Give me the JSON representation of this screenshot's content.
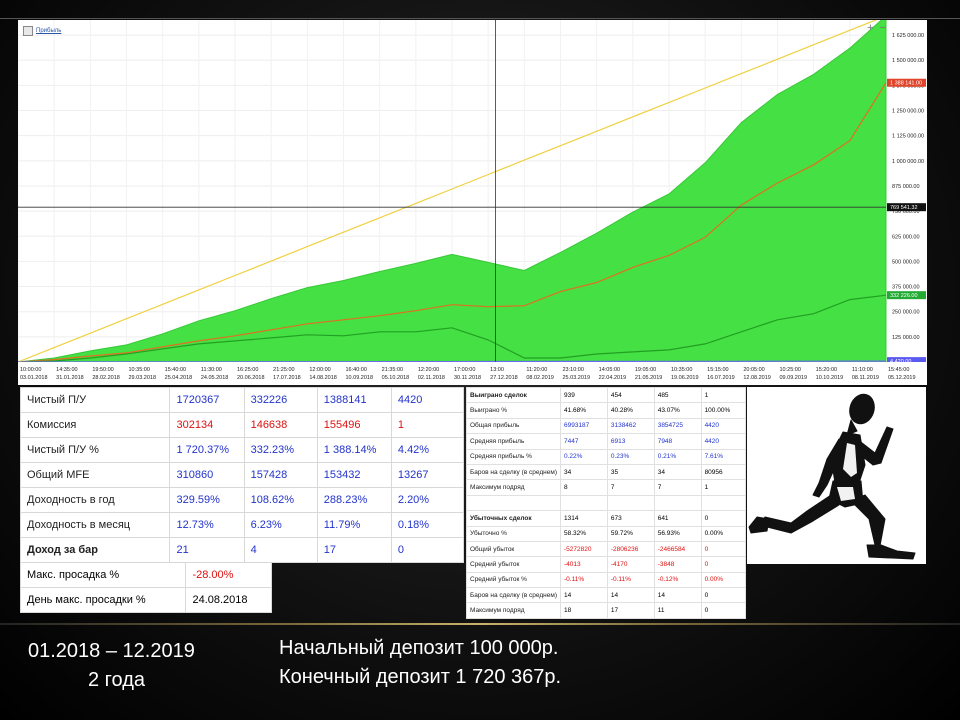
{
  "chart_legend": "Прибыль",
  "chart_data": {
    "type": "area",
    "x_ticks": [
      {
        "time": "10:00:00",
        "date": "03.01.2018"
      },
      {
        "time": "14:35:00",
        "date": "31.01.2018"
      },
      {
        "time": "19:50:00",
        "date": "28.02.2018"
      },
      {
        "time": "10:35:00",
        "date": "29.03.2018"
      },
      {
        "time": "15:40:00",
        "date": "25.04.2018"
      },
      {
        "time": "11:30:00",
        "date": "24.05.2018"
      },
      {
        "time": "16:25:00",
        "date": "20.06.2018"
      },
      {
        "time": "21:25:00",
        "date": "17.07.2018"
      },
      {
        "time": "12:00:00",
        "date": "14.08.2018"
      },
      {
        "time": "16:40:00",
        "date": "10.09.2018"
      },
      {
        "time": "21:35:00",
        "date": "05.10.2018"
      },
      {
        "time": "12:20:00",
        "date": "02.11.2018"
      },
      {
        "time": "17:00:00",
        "date": "30.11.2018"
      },
      {
        "time": "13:00",
        "date": "27.12.2018"
      },
      {
        "time": "11:20:00",
        "date": "08.02.2019"
      },
      {
        "time": "23:10:00",
        "date": "25.03.2019"
      },
      {
        "time": "14:05:00",
        "date": "22.04.2019"
      },
      {
        "time": "19:05:00",
        "date": "21.05.2019"
      },
      {
        "time": "10:35:00",
        "date": "19.06.2019"
      },
      {
        "time": "15:15:00",
        "date": "16.07.2019"
      },
      {
        "time": "20:05:00",
        "date": "12.08.2019"
      },
      {
        "time": "10:25:00",
        "date": "09.09.2019"
      },
      {
        "time": "15:20:00",
        "date": "10.10.2019"
      },
      {
        "time": "11:10:00",
        "date": "08.11.2019"
      },
      {
        "time": "15:45:00",
        "date": "05.12.2019"
      }
    ],
    "x_extra_labels": [
      "29.0",
      "2019"
    ],
    "y_ticks": [
      "1 625 000.00",
      "1 500 000.00",
      "1 375 000.00",
      "1 250 000.00",
      "1 125 000.00",
      "1 000 000.00",
      "875 000.00",
      "750 000.00",
      "625 000.00",
      "500 000.00",
      "375 000.00",
      "250 000.00",
      "125 000.00"
    ],
    "ylim": [
      0,
      1700000
    ],
    "price_tags": [
      {
        "label": "1 720 367.00",
        "value": 1720367,
        "color": "#f2c200"
      },
      {
        "label": "1 388 141.00",
        "value": 1388141,
        "color": "#e0442a"
      },
      {
        "label": "769 541.32",
        "value": 769541,
        "color": "#111111"
      },
      {
        "label": "332 226.00",
        "value": 332226,
        "color": "#22aa33"
      },
      {
        "label": "4 420.00",
        "value": 4420,
        "color": "#5a5af0"
      }
    ],
    "crosshair": {
      "x_fraction": 0.55,
      "value": 769541
    },
    "series": [
      {
        "name": "total",
        "color": "#44e044",
        "values": [
          0,
          20000,
          55000,
          85000,
          140000,
          205000,
          255000,
          315000,
          370000,
          405000,
          450000,
          490000,
          535000,
          495000,
          455000,
          545000,
          640000,
          745000,
          835000,
          990000,
          1190000,
          1330000,
          1430000,
          1560000,
          1720367
        ]
      },
      {
        "name": "long",
        "color": "#e07020",
        "values": [
          0,
          12000,
          30000,
          45000,
          75000,
          105000,
          130000,
          160000,
          190000,
          210000,
          230000,
          255000,
          285000,
          275000,
          280000,
          350000,
          395000,
          470000,
          530000,
          620000,
          780000,
          890000,
          980000,
          1100000,
          1388141
        ]
      },
      {
        "name": "short",
        "color": "#22a022",
        "values": [
          0,
          5000,
          20000,
          40000,
          65000,
          90000,
          105000,
          120000,
          135000,
          130000,
          150000,
          150000,
          170000,
          110000,
          20000,
          20000,
          40000,
          50000,
          60000,
          90000,
          150000,
          210000,
          240000,
          310000,
          332226
        ]
      },
      {
        "name": "straight",
        "color": "#f0d040",
        "values": [
          0,
          71682,
          143364,
          215046,
          286728,
          358410,
          430092,
          501774,
          573456,
          645138,
          716820,
          788502,
          860184,
          931866,
          1003548,
          1075230,
          1146912,
          1218594,
          1290276,
          1361958,
          1433640,
          1505322,
          1577004,
          1648686,
          1720367
        ]
      },
      {
        "name": "commission",
        "color": "#6a6af0",
        "values": [
          0,
          184,
          368,
          553,
          737,
          921,
          1105,
          1289,
          1473,
          1658,
          1842,
          2026,
          2210,
          2394,
          2578,
          2763,
          2947,
          3131,
          3315,
          3499,
          3683,
          3868,
          4052,
          4236,
          4420
        ]
      }
    ]
  },
  "stats": [
    {
      "label": "Чистый П/У",
      "values": [
        "1720367",
        "332226",
        "1388141",
        "4420"
      ],
      "red": false,
      "bold": false
    },
    {
      "label": "Комиссия",
      "values": [
        "302134",
        "146638",
        "155496",
        "1"
      ],
      "red": true,
      "bold": false
    },
    {
      "label": "Чистый П/У %",
      "values": [
        "1 720.37%",
        "332.23%",
        "1 388.14%",
        "4.42%"
      ],
      "red": false,
      "bold": false
    },
    {
      "label": "Общий MFE",
      "values": [
        "310860",
        "157428",
        "153432",
        "13267"
      ],
      "red": false,
      "bold": false
    },
    {
      "label": "Доходность в год",
      "values": [
        "329.59%",
        "108.62%",
        "288.23%",
        "2.20%"
      ],
      "red": false,
      "bold": false
    },
    {
      "label": "Доходность в месяц",
      "values": [
        "12.73%",
        "6.23%",
        "11.79%",
        "0.18%"
      ],
      "red": false,
      "bold": false
    },
    {
      "label": "Доход за бар",
      "values": [
        "21",
        "4",
        "17",
        "0"
      ],
      "red": false,
      "bold": true
    }
  ],
  "drawdown": [
    {
      "label": "Макс. просадка %",
      "value": "-28.00%",
      "red": true
    },
    {
      "label": "День макс. просадки %",
      "value": "24.08.2018",
      "red": false
    }
  ],
  "trades": [
    {
      "label": "Выиграно сделок",
      "values": [
        "939",
        "454",
        "485",
        "1"
      ],
      "style": "plain",
      "header": true
    },
    {
      "label": "Выиграно %",
      "values": [
        "41.68%",
        "40.28%",
        "43.07%",
        "100.00%"
      ],
      "style": "plain",
      "header": false
    },
    {
      "label": "Общая прибыль",
      "values": [
        "6993187",
        "3138462",
        "3854725",
        "4420"
      ],
      "style": "blue",
      "header": false
    },
    {
      "label": "Средняя прибыль",
      "values": [
        "7447",
        "6913",
        "7948",
        "4420"
      ],
      "style": "blue",
      "header": false
    },
    {
      "label": "Средняя прибыль %",
      "values": [
        "0.22%",
        "0.23%",
        "0.21%",
        "7.61%"
      ],
      "style": "blue",
      "header": false
    },
    {
      "label": "Баров на сделку (в среднем)",
      "values": [
        "34",
        "35",
        "34",
        "80956"
      ],
      "style": "plain",
      "header": false
    },
    {
      "label": "Максимум подряд",
      "values": [
        "8",
        "7",
        "7",
        "1"
      ],
      "style": "plain",
      "header": false
    },
    {
      "label": "",
      "values": [
        "",
        "",
        "",
        ""
      ],
      "style": "plain",
      "header": false
    },
    {
      "label": "Убыточных сделок",
      "values": [
        "1314",
        "673",
        "641",
        "0"
      ],
      "style": "plain",
      "header": true
    },
    {
      "label": "Убыточно %",
      "values": [
        "58.32%",
        "59.72%",
        "56.93%",
        "0.00%"
      ],
      "style": "plain",
      "header": false
    },
    {
      "label": "Общий убыток",
      "values": [
        "-5272820",
        "-2806236",
        "-2466584",
        "0"
      ],
      "style": "red",
      "header": false
    },
    {
      "label": "Средний убыток",
      "values": [
        "-4013",
        "-4170",
        "-3848",
        "0"
      ],
      "style": "red",
      "header": false
    },
    {
      "label": "Средний убыток %",
      "values": [
        "-0.11%",
        "-0.11%",
        "-0.12%",
        "0.00%"
      ],
      "style": "red",
      "header": false
    },
    {
      "label": "Баров на сделку (в среднем)",
      "values": [
        "14",
        "14",
        "14",
        "0"
      ],
      "style": "plain",
      "header": false
    },
    {
      "label": "Максимум подряд",
      "values": [
        "18",
        "17",
        "11",
        "0"
      ],
      "style": "plain",
      "header": false
    }
  ],
  "footer": {
    "period": "01.2018 – 12.2019",
    "years": "2 года",
    "deposit_start": "Начальный депозит 100 000р.",
    "deposit_end": "Конечный депозит 1 720 367р."
  }
}
